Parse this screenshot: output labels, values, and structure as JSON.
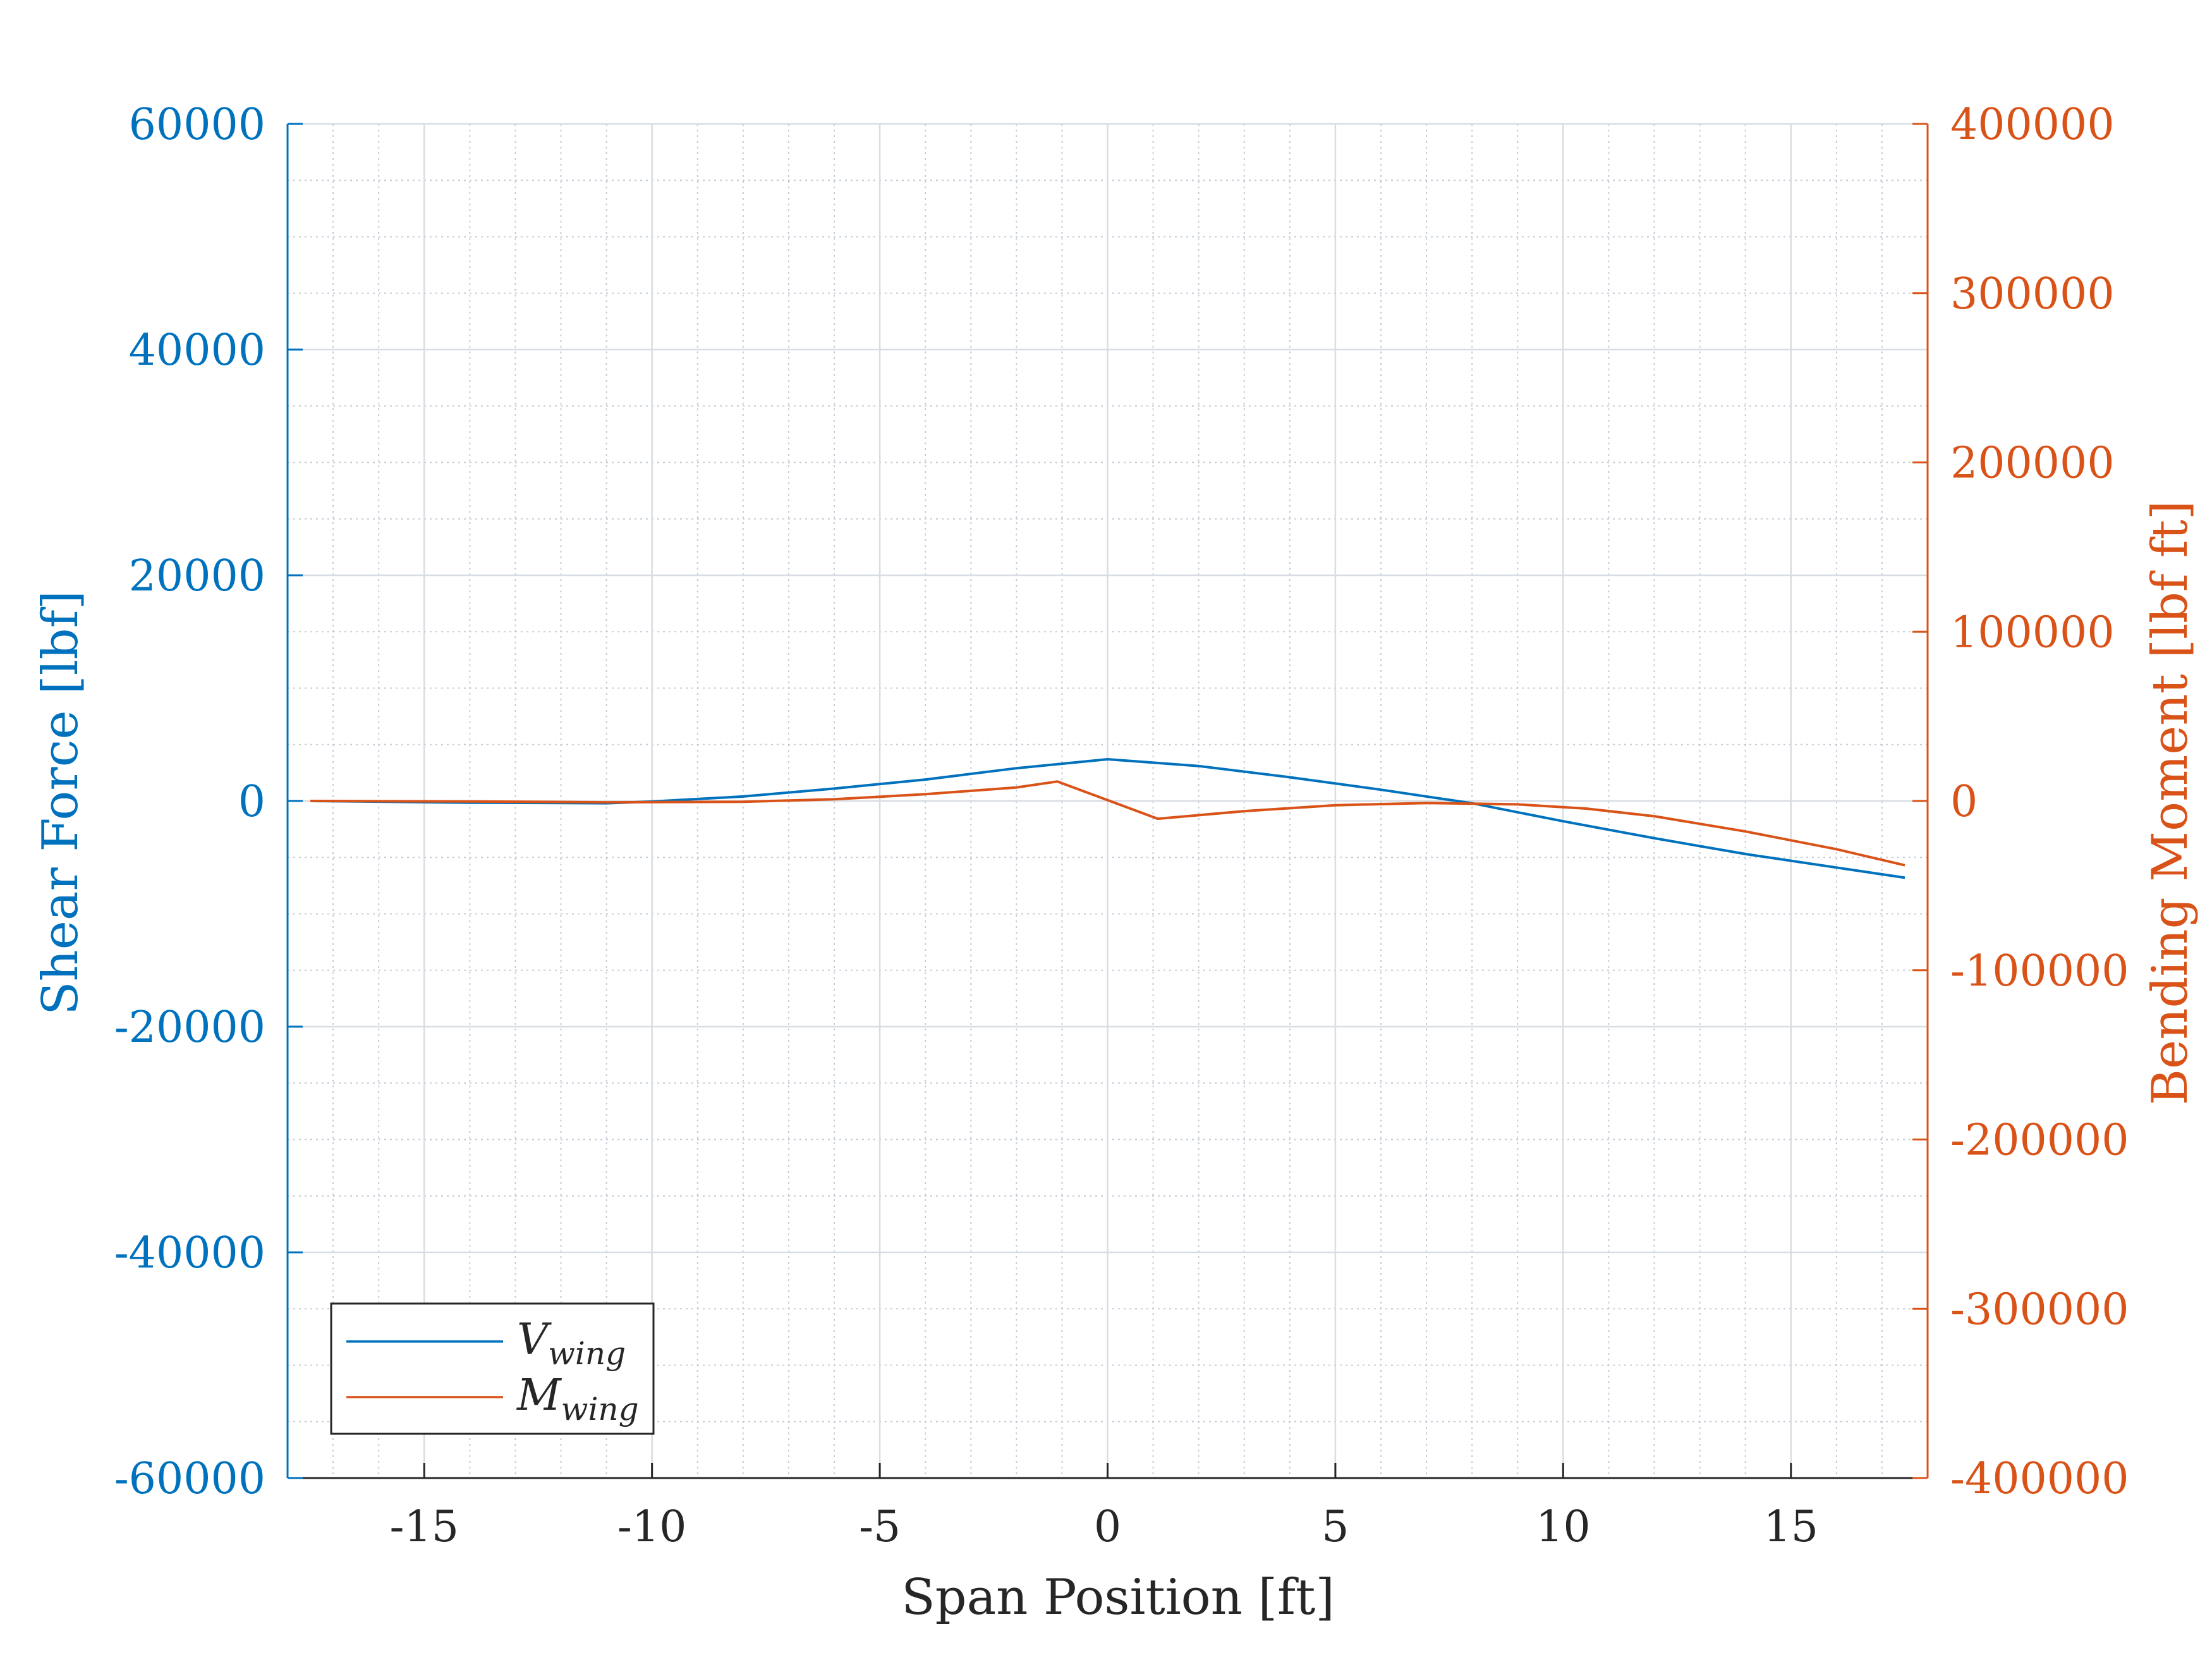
{
  "chart_data": {
    "type": "line",
    "title": "",
    "xlabel": "Span Position [ft]",
    "ylabel_left": "Shear Force [lbf]",
    "ylabel_right": "Bending Moment [lbf ft]",
    "xlim": [
      -18,
      18
    ],
    "ylim_left": [
      -60000,
      60000
    ],
    "ylim_right": [
      -400000,
      400000
    ],
    "x_ticks": [
      -15,
      -10,
      -5,
      0,
      5,
      10,
      15
    ],
    "x_tick_labels": [
      "-15",
      "-10",
      "-5",
      "0",
      "5",
      "10",
      "15"
    ],
    "y_left_ticks": [
      -60000,
      -40000,
      -20000,
      0,
      20000,
      40000,
      60000
    ],
    "y_left_tick_labels": [
      "-60000",
      "-40000",
      "-20000",
      "0",
      "20000",
      "40000",
      "60000"
    ],
    "y_right_ticks": [
      -400000,
      -300000,
      -200000,
      -100000,
      0,
      100000,
      200000,
      300000,
      400000
    ],
    "y_right_tick_labels": [
      "-400000",
      "-300000",
      "-200000",
      "-100000",
      "0",
      "100000",
      "200000",
      "300000",
      "400000"
    ],
    "grid": true,
    "minor_grid": true,
    "legend_position": "bottom-left",
    "series": [
      {
        "name": "V_wing",
        "legend_main": "V",
        "legend_sub": "wing",
        "axis": "left",
        "color": "#0072BD",
        "x": [
          -17.5,
          -14,
          -11,
          -10,
          -8,
          -6,
          -4,
          -2,
          0,
          2,
          4,
          6,
          8,
          10,
          12,
          14,
          16,
          17.5
        ],
        "y": [
          0,
          -150,
          -200,
          -50,
          400,
          1100,
          1900,
          2900,
          3700,
          3100,
          2100,
          1000,
          -200,
          -1800,
          -3300,
          -4700,
          -5900,
          -6800
        ]
      },
      {
        "name": "M_wing",
        "legend_main": "M",
        "legend_sub": "wing",
        "axis": "right",
        "color": "#D95319",
        "x": [
          -17.5,
          -14,
          -11,
          -8,
          -6,
          -4,
          -2,
          -1.1,
          1.1,
          3,
          5,
          7,
          9,
          10.5,
          12,
          14,
          16,
          17.5
        ],
        "y": [
          0,
          -300,
          -800,
          -500,
          1000,
          4000,
          8000,
          11500,
          -10500,
          -6000,
          -2500,
          -1200,
          -2000,
          -4500,
          -9000,
          -18000,
          -28500,
          -38000
        ]
      }
    ]
  }
}
